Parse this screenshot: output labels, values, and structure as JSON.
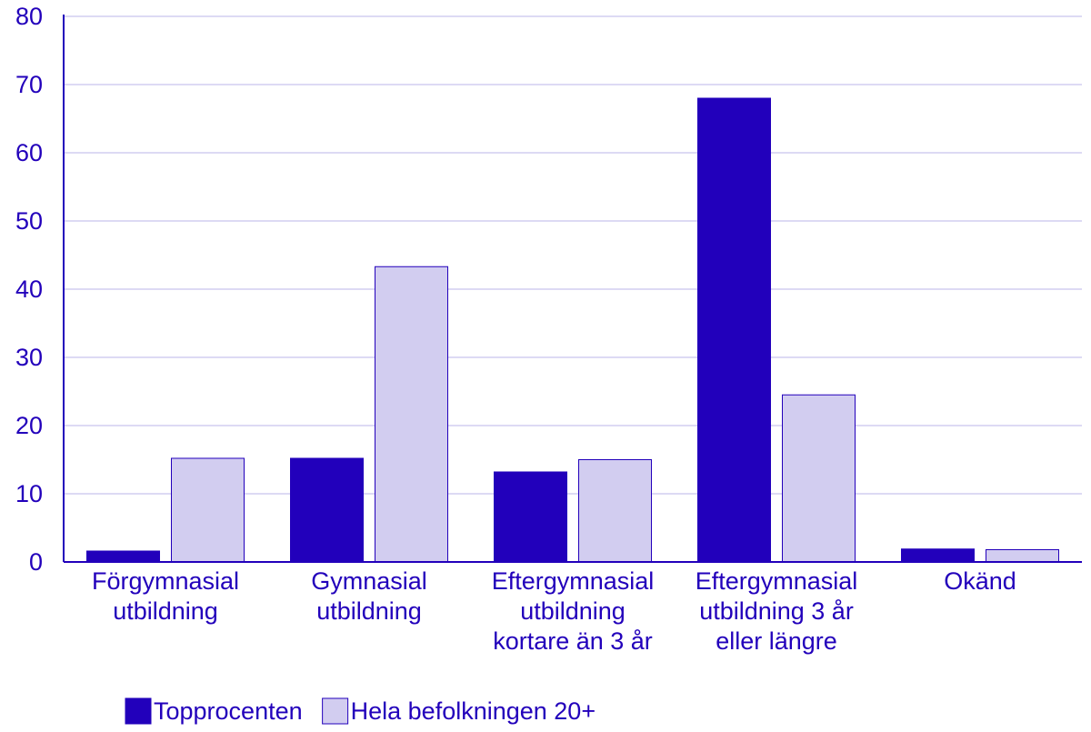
{
  "chart_data": {
    "type": "bar",
    "categories": [
      [
        "Förgymnasial",
        "utbildning"
      ],
      [
        "Gymnasial",
        "utbildning"
      ],
      [
        "Eftergymnasial",
        "utbildning",
        "kortare än 3 år"
      ],
      [
        "Eftergymnasial",
        "utbildning 3 år",
        "eller längre"
      ],
      [
        "Okänd"
      ]
    ],
    "series": [
      {
        "name": "Topprocenten",
        "values": [
          1.6,
          15.2,
          13.2,
          68.0,
          1.9
        ],
        "color": "#2200bb"
      },
      {
        "name": "Hela befolkningen 20+",
        "values": [
          15.2,
          43.3,
          15.0,
          24.5,
          1.8
        ],
        "color": "#d2cdf0"
      }
    ],
    "ylim": [
      0,
      80
    ],
    "yticks": [
      "0",
      "10",
      "20",
      "30",
      "40",
      "50",
      "60",
      "70",
      "80"
    ],
    "grid": true,
    "legend_position": "bottom-left",
    "colors": {
      "axis": "#2200bb",
      "grid": "#d2cdf0",
      "text": "#2200bb",
      "bar_outline": "#2200bb"
    }
  }
}
